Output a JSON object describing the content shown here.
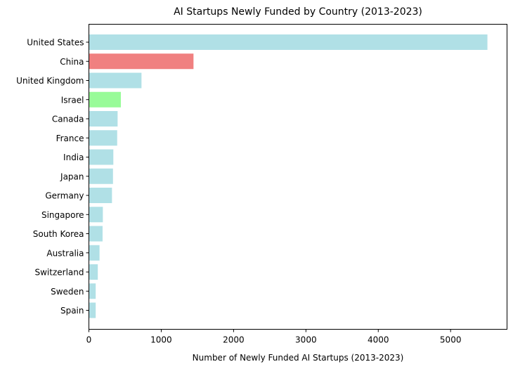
{
  "chart_data": {
    "type": "bar",
    "orientation": "horizontal",
    "title": "AI Startups Newly Funded by Country (2013-2023)",
    "xlabel": "Number of Newly Funded AI Startups (2013-2023)",
    "ylabel": "",
    "xlim": [
      0,
      5780
    ],
    "xticks": [
      0,
      1000,
      2000,
      3000,
      4000,
      5000
    ],
    "grid": false,
    "legend": "none",
    "categories": [
      "United States",
      "China",
      "United Kingdom",
      "Israel",
      "Canada",
      "France",
      "India",
      "Japan",
      "Germany",
      "Singapore",
      "South Korea",
      "Australia",
      "Switzerland",
      "Sweden",
      "Spain"
    ],
    "values": [
      5509,
      1446,
      727,
      442,
      397,
      391,
      338,
      333,
      319,
      193,
      189,
      147,
      123,
      94,
      94
    ],
    "colors": [
      "#b0e0e6",
      "#f08080",
      "#b0e0e6",
      "#98fb98",
      "#b0e0e6",
      "#b0e0e6",
      "#b0e0e6",
      "#b0e0e6",
      "#b0e0e6",
      "#b0e0e6",
      "#b0e0e6",
      "#b0e0e6",
      "#b0e0e6",
      "#b0e0e6",
      "#b0e0e6"
    ]
  }
}
